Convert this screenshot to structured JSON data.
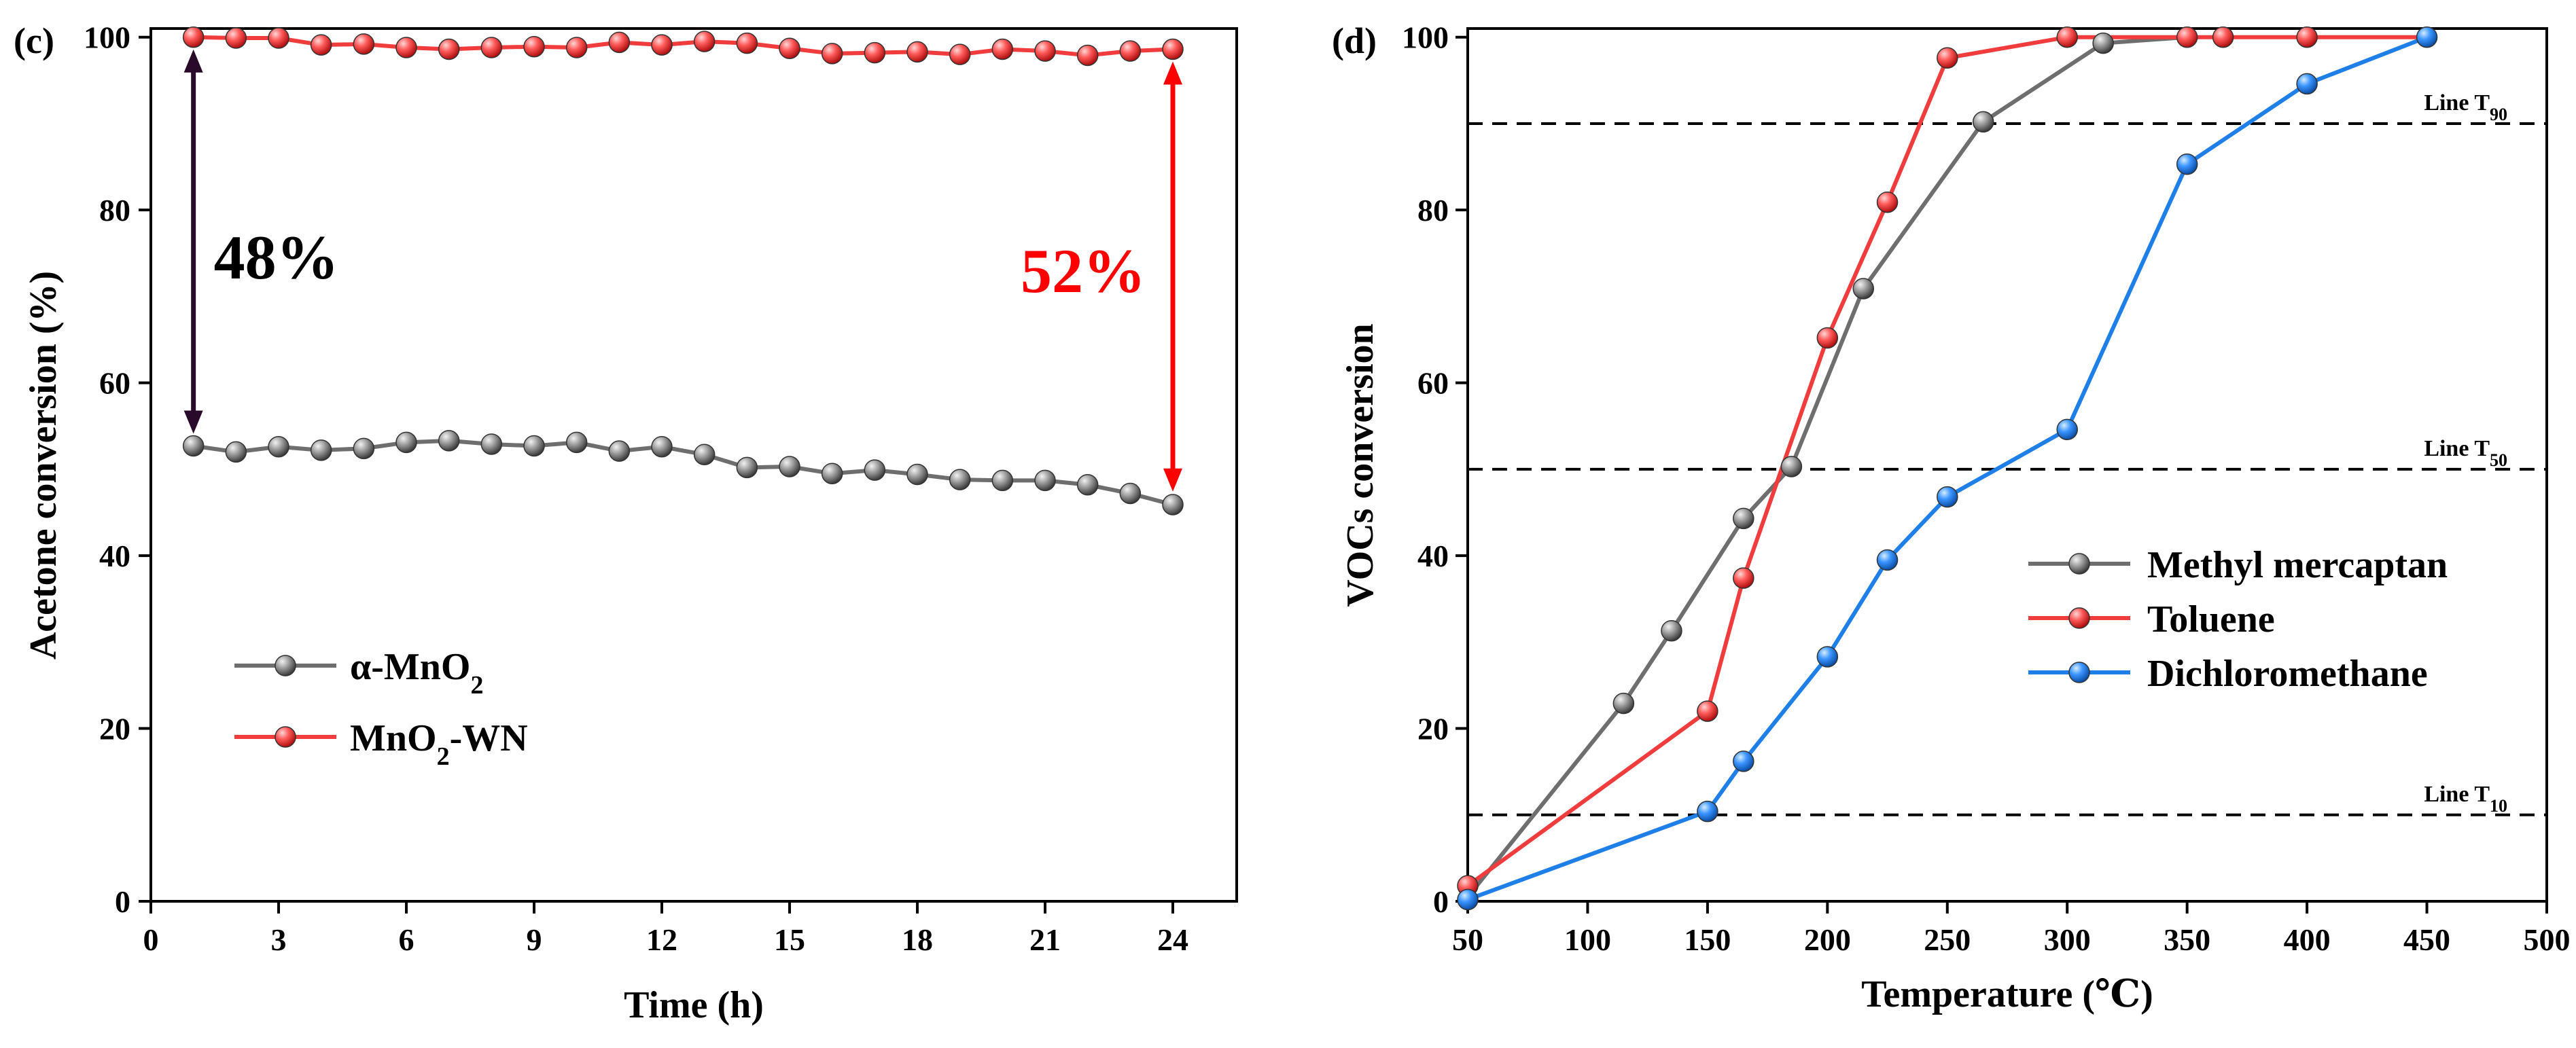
{
  "chart_data": [
    {
      "panel_label": "(c)",
      "type": "line",
      "xlabel": "Time (h)",
      "ylabel": "Acetone conversion (%)",
      "xlim": [
        0,
        25.5
      ],
      "ylim": [
        0,
        101
      ],
      "xticks": [
        0,
        3,
        6,
        9,
        12,
        15,
        18,
        21,
        24
      ],
      "yticks": [
        0,
        20,
        40,
        60,
        80,
        100
      ],
      "x": [
        1,
        2,
        3,
        4,
        5,
        6,
        7,
        8,
        9,
        10,
        11,
        12,
        13,
        14,
        15,
        16,
        17,
        18,
        19,
        20,
        21,
        22,
        23,
        24
      ],
      "series": [
        {
          "name": "α-MnO",
          "name_sub": "2",
          "name_suffix": "",
          "color": "#6e6e6e",
          "marker_color": "#9a9a9a",
          "values": [
            52.7,
            52.0,
            52.6,
            52.2,
            52.4,
            53.1,
            53.3,
            52.9,
            52.7,
            53.1,
            52.1,
            52.6,
            51.7,
            50.2,
            50.3,
            49.5,
            49.9,
            49.4,
            48.8,
            48.7,
            48.7,
            48.2,
            47.2,
            45.9
          ]
        },
        {
          "name": "MnO",
          "name_sub": "2",
          "name_suffix": "-WN",
          "color": "#f03c3c",
          "marker_color": "#ff6666",
          "values": [
            100.0,
            99.9,
            99.9,
            99.1,
            99.2,
            98.8,
            98.6,
            98.8,
            98.9,
            98.8,
            99.4,
            99.1,
            99.5,
            99.3,
            98.7,
            98.1,
            98.2,
            98.3,
            98.0,
            98.6,
            98.4,
            97.9,
            98.4,
            98.6
          ]
        }
      ],
      "annotations": [
        {
          "text": "48%",
          "color": "#000000",
          "arrow_x": 1,
          "from": 52.7,
          "to": 100,
          "arrow_color": "#2a0a2a"
        },
        {
          "text": "52%",
          "color": "#ff0000",
          "arrow_x": 24,
          "from": 46.0,
          "to": 98.6,
          "arrow_color": "#ff0000"
        }
      ]
    },
    {
      "panel_label": "(d)",
      "type": "line",
      "xlabel": "Temperature (℃)",
      "ylabel": "VOCs conversion",
      "xlim": [
        50,
        500
      ],
      "ylim": [
        0,
        101
      ],
      "xticks": [
        50,
        100,
        150,
        200,
        250,
        300,
        350,
        400,
        450,
        500
      ],
      "yticks": [
        0,
        20,
        40,
        60,
        80,
        100
      ],
      "reference_lines": [
        {
          "label": "Line T",
          "sub": "90",
          "y": 90
        },
        {
          "label": "Line T",
          "sub": "50",
          "y": 50
        },
        {
          "label": "Line T",
          "sub": "10",
          "y": 10
        }
      ],
      "series": [
        {
          "name": "Methyl mercaptan",
          "color": "#6e6e6e",
          "marker_color": "#9a9a9a",
          "x": [
            50,
            115,
            135,
            165,
            185,
            215,
            265,
            315,
            350
          ],
          "values": [
            0.5,
            22.9,
            31.3,
            44.3,
            50.3,
            70.9,
            90.2,
            99.3,
            100.0
          ],
          "markers": [
            false,
            true,
            true,
            true,
            true,
            true,
            true,
            true,
            false
          ]
        },
        {
          "name": "Toluene",
          "color": "#f03c3c",
          "marker_color": "#ff6666",
          "x": [
            50,
            150,
            165,
            200,
            225,
            250,
            300,
            350,
            365,
            400,
            450
          ],
          "values": [
            1.8,
            22.0,
            37.4,
            65.2,
            80.9,
            97.6,
            100.0,
            100.0,
            100.0,
            100.0,
            100.0
          ],
          "markers": [
            true,
            true,
            true,
            true,
            true,
            true,
            true,
            true,
            true,
            true,
            false
          ]
        },
        {
          "name": "Dichloromethane",
          "color": "#1f7fe8",
          "marker_color": "#3f9bff",
          "x": [
            50,
            150,
            165,
            200,
            225,
            250,
            300,
            350,
            400,
            450
          ],
          "values": [
            0.2,
            10.4,
            16.2,
            28.3,
            39.5,
            46.8,
            54.6,
            85.3,
            94.6,
            100.0
          ],
          "markers": [
            true,
            true,
            true,
            true,
            true,
            true,
            true,
            true,
            true,
            true
          ]
        }
      ]
    }
  ]
}
